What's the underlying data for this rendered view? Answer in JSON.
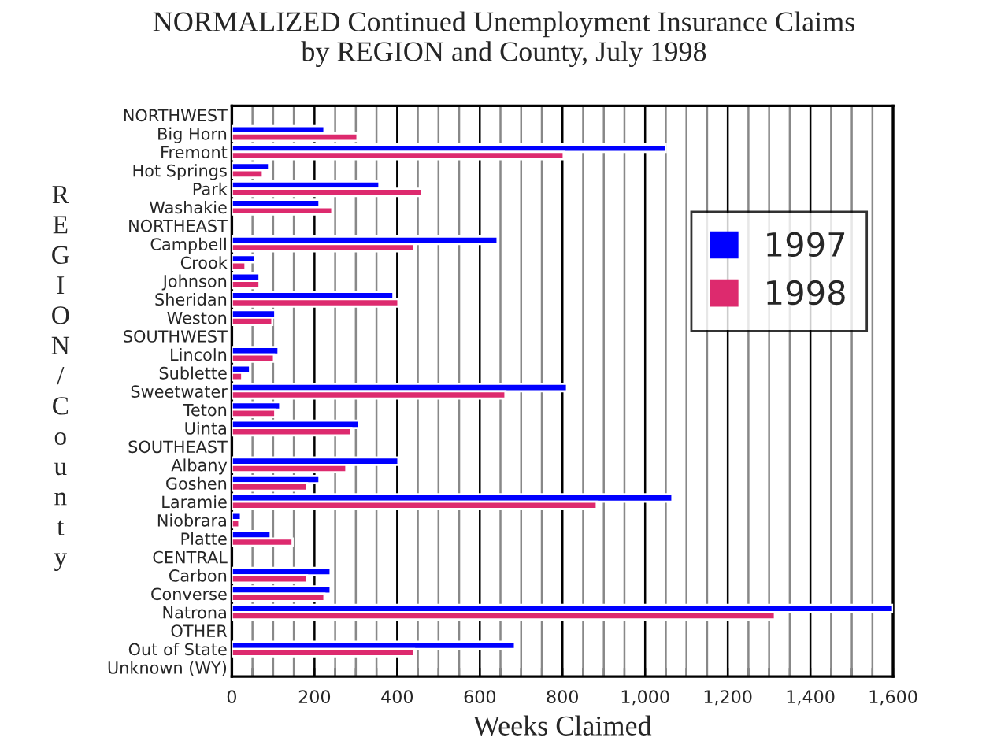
{
  "chart_data": {
    "type": "bar",
    "orientation": "horizontal",
    "title": "NORMALIZED Continued Unemployment Insurance Claims\nby REGION and County, July 1998",
    "xlabel": "Weeks Claimed",
    "ylabel": "REGION/County",
    "categories": [
      "NORTHWEST",
      "Big Horn",
      "Fremont",
      "Hot Springs",
      "Park",
      "Washakie",
      "NORTHEAST",
      "Campbell",
      "Crook",
      "Johnson",
      "Sheridan",
      "Weston",
      "SOUTHWEST",
      "Lincoln",
      "Sublette",
      "Sweetwater",
      "Teton",
      "Uinta",
      "SOUTHEAST",
      "Albany",
      "Goshen",
      "Laramie",
      "Niobrara",
      "Platte",
      "CENTRAL",
      "Carbon",
      "Converse",
      "Natrona",
      "OTHER",
      "Out of State",
      "Unknown (WY)"
    ],
    "series": [
      {
        "name": "1997",
        "color": "#0000ff",
        "values": [
          null,
          224,
          1050,
          90,
          357,
          212,
          null,
          643,
          56,
          67,
          391,
          105,
          null,
          113,
          44,
          811,
          117,
          308,
          null,
          403,
          212,
          1066,
          22,
          94,
          null,
          239,
          239,
          1600,
          null,
          685,
          null
        ]
      },
      {
        "name": "1998",
        "color": "#dd2a6e",
        "values": [
          null,
          304,
          803,
          75,
          460,
          243,
          null,
          441,
          33,
          67,
          403,
          98,
          null,
          102,
          25,
          662,
          105,
          289,
          null,
          277,
          182,
          883,
          18,
          147,
          null,
          182,
          224,
          1314,
          null,
          441,
          null
        ]
      }
    ],
    "xlim": [
      0,
      1600
    ],
    "xticks": [
      0,
      {
        "value": 50,
        "label": null
      },
      {
        "value": 100,
        "label": null
      },
      {
        "value": 150,
        "label": null
      },
      200,
      {
        "value": 250,
        "label": null
      },
      {
        "value": 300,
        "label": null
      },
      {
        "value": 350,
        "label": null
      },
      400,
      {
        "value": 450,
        "label": null
      },
      {
        "value": 500,
        "label": null
      },
      {
        "value": 550,
        "label": null
      },
      600,
      {
        "value": 650,
        "label": null
      },
      {
        "value": 700,
        "label": null
      },
      {
        "value": 750,
        "label": null
      },
      800,
      {
        "value": 850,
        "label": null
      },
      {
        "value": 900,
        "label": null
      },
      {
        "value": 950,
        "label": null
      },
      {
        "value": 1000,
        "label": "1,000"
      },
      {
        "value": 1050,
        "label": null
      },
      {
        "value": 1100,
        "label": null
      },
      {
        "value": 1150,
        "label": null
      },
      {
        "value": 1200,
        "label": "1,200"
      },
      {
        "value": 1250,
        "label": null
      },
      {
        "value": 1300,
        "label": null
      },
      {
        "value": 1350,
        "label": null
      },
      {
        "value": 1400,
        "label": "1,400"
      },
      {
        "value": 1450,
        "label": null
      },
      {
        "value": 1500,
        "label": null
      },
      {
        "value": 1550,
        "label": null
      },
      {
        "value": 1600,
        "label": "1,600"
      }
    ],
    "grid": "x",
    "legend": "right"
  }
}
